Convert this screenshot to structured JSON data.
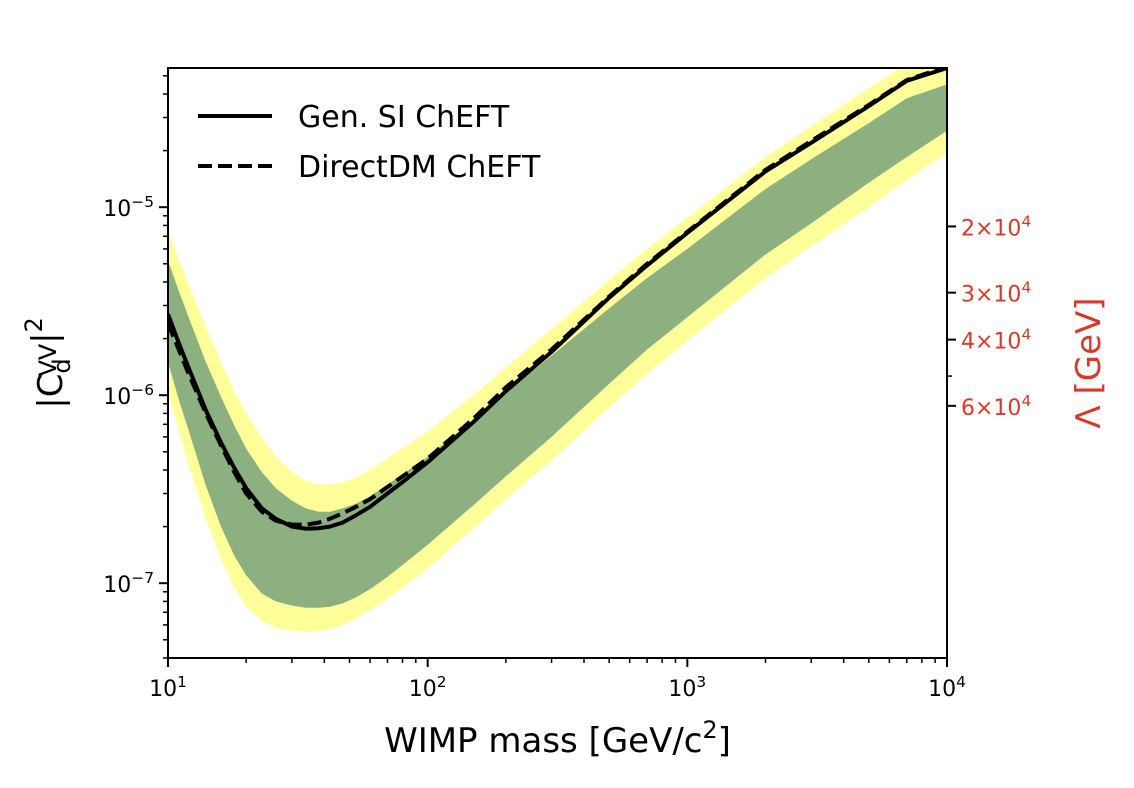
{
  "chart_data": {
    "type": "line",
    "x_scale": "log",
    "y_scale": "log",
    "xlim": [
      10,
      10000
    ],
    "ylim": [
      4e-08,
      5.5e-05
    ],
    "xlabel": "WIMP mass [GeV/c²]",
    "ylabel": "|C_d^VV|²",
    "ylabel_parts": {
      "base": "|C",
      "sub": "d",
      "sup": "VV",
      "suffix": "|",
      "power": "2"
    },
    "xlabel_parts": {
      "text": "WIMP mass [GeV/c",
      "power": "2",
      "suffix": "]"
    },
    "x_ticks": [
      {
        "value": 10,
        "base": "10",
        "exp": "1"
      },
      {
        "value": 100,
        "base": "10",
        "exp": "2"
      },
      {
        "value": 1000,
        "base": "10",
        "exp": "3"
      },
      {
        "value": 10000,
        "base": "10",
        "exp": "4"
      }
    ],
    "y_ticks": [
      {
        "value": 1e-07,
        "base": "10",
        "exp": "−7"
      },
      {
        "value": 1e-06,
        "base": "10",
        "exp": "−6"
      },
      {
        "value": 1e-05,
        "base": "10",
        "exp": "−5"
      }
    ],
    "secondary_y": {
      "label": "Λ [GeV]",
      "color": "#d63a2a",
      "ticks": [
        {
          "value": 20000,
          "mant": "2",
          "base": "10",
          "exp": "4"
        },
        {
          "value": 30000,
          "mant": "3",
          "base": "10",
          "exp": "4"
        },
        {
          "value": 40000,
          "mant": "4",
          "base": "10",
          "exp": "4"
        },
        {
          "value": 60000,
          "mant": "6",
          "base": "10",
          "exp": "4"
        }
      ],
      "minor_ticks": [
        50000
      ]
    },
    "x": [
      10,
      11,
      12,
      14,
      16,
      18,
      20,
      23,
      26,
      30,
      34,
      38,
      42,
      47,
      53,
      60,
      70,
      80,
      100,
      150,
      200,
      300,
      500,
      700,
      1000,
      2000,
      3000,
      5000,
      7000,
      10000
    ],
    "series": [
      {
        "name": "Gen. SI ChEFT",
        "style": "solid",
        "color": "#000000",
        "values": [
          2.7e-06,
          1.9e-06,
          1.4e-06,
          8.3e-07,
          5.6e-07,
          4.1e-07,
          3.2e-07,
          2.5e-07,
          2.2e-07,
          2e-07,
          1.95e-07,
          1.96e-07,
          2e-07,
          2.1e-07,
          2.3e-07,
          2.55e-07,
          3e-07,
          3.45e-07,
          4.4e-07,
          7.2e-07,
          1.05e-06,
          1.7e-06,
          3.3e-06,
          4.9e-06,
          7.3e-06,
          1.55e-05,
          2.2e-05,
          3.45e-05,
          4.7e-05,
          5.5e-05
        ]
      },
      {
        "name": "DirectDM ChEFT",
        "style": "dashed",
        "color": "#000000",
        "values": [
          2.4e-06,
          1.75e-06,
          1.3e-06,
          8e-07,
          5.4e-07,
          3.9e-07,
          3e-07,
          2.4e-07,
          2.15e-07,
          2.05e-07,
          2.05e-07,
          2.1e-07,
          2.2e-07,
          2.35e-07,
          2.55e-07,
          2.8e-07,
          3.25e-07,
          3.7e-07,
          4.6e-07,
          7.5e-07,
          1.1e-06,
          1.75e-06,
          3.35e-06,
          5e-06,
          7.4e-06,
          1.58e-05,
          2.25e-05,
          3.5e-05,
          4.75e-05,
          5.6e-05
        ]
      }
    ],
    "bands": [
      {
        "name": "2-sigma",
        "color": "#ffff99",
        "lower": [
          1.05e-06,
          6.5e-07,
          4.3e-07,
          2.2e-07,
          1.35e-07,
          9.5e-08,
          7.5e-08,
          6.3e-08,
          5.8e-08,
          5.6e-08,
          5.5e-08,
          5.55e-08,
          5.7e-08,
          6e-08,
          6.5e-08,
          7.2e-08,
          8.3e-08,
          9.5e-08,
          1.2e-07,
          1.95e-07,
          2.8e-07,
          4.5e-07,
          8.6e-07,
          1.3e-06,
          1.95e-06,
          4.2e-06,
          6.2e-06,
          1e-05,
          1.4e-05,
          1.95e-05
        ],
        "upper": [
          7.5e-06,
          5.3e-06,
          3.9e-06,
          2.3e-06,
          1.5e-06,
          1.05e-06,
          8e-07,
          5.9e-07,
          4.7e-07,
          3.9e-07,
          3.5e-07,
          3.35e-07,
          3.35e-07,
          3.45e-07,
          3.65e-07,
          4e-07,
          4.6e-07,
          5.2e-07,
          6.4e-07,
          1e-06,
          1.4e-06,
          2.25e-06,
          4.1e-06,
          6e-06,
          8.8e-06,
          1.85e-05,
          2.7e-05,
          4.3e-05,
          5.8e-05,
          6.5e-05
        ]
      },
      {
        "name": "1-sigma",
        "color": "#8db080",
        "lower": [
          1.5e-06,
          9.5e-07,
          6.5e-07,
          3.3e-07,
          2e-07,
          1.4e-07,
          1.1e-07,
          8.8e-08,
          8e-08,
          7.6e-08,
          7.4e-08,
          7.4e-08,
          7.5e-08,
          7.8e-08,
          8.4e-08,
          9.3e-08,
          1.08e-07,
          1.25e-07,
          1.6e-07,
          2.6e-07,
          3.7e-07,
          6e-07,
          1.15e-06,
          1.75e-06,
          2.6e-06,
          5.6e-06,
          8.2e-06,
          1.35e-05,
          1.85e-05,
          2.55e-05
        ],
        "upper": [
          5.2e-06,
          3.6e-06,
          2.6e-06,
          1.5e-06,
          9.8e-07,
          6.9e-07,
          5.2e-07,
          3.9e-07,
          3.2e-07,
          2.75e-07,
          2.5e-07,
          2.4e-07,
          2.4e-07,
          2.5e-07,
          2.65e-07,
          2.9e-07,
          3.35e-07,
          3.8e-07,
          4.7e-07,
          7.4e-07,
          1.03e-06,
          1.62e-06,
          2.9e-06,
          4.2e-06,
          6e-06,
          1.25e-05,
          1.8e-05,
          2.8e-05,
          3.8e-05,
          4.5e-05
        ]
      }
    ],
    "legend": {
      "position": "top-left",
      "frame": false
    },
    "grid": false
  }
}
